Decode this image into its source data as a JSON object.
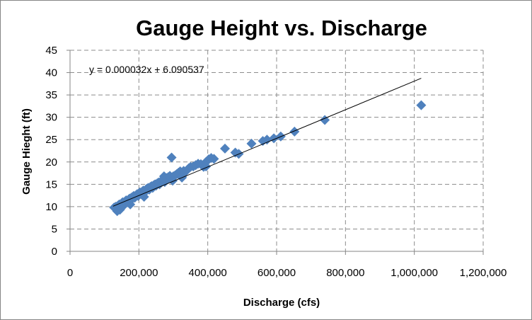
{
  "chart_data": {
    "type": "scatter",
    "title": "Gauge Height vs. Discharge",
    "xlabel": "Discharge (cfs)",
    "ylabel": "Gauge Hieght (ft)",
    "xlim": [
      0,
      1200000
    ],
    "ylim": [
      0,
      45
    ],
    "x_ticks": [
      0,
      200000,
      400000,
      600000,
      800000,
      1000000,
      1200000
    ],
    "x_tick_labels": [
      "0",
      "200,000",
      "400,000",
      "600,000",
      "800,000",
      "1,000,000",
      "1,200,000"
    ],
    "y_ticks": [
      0,
      5,
      10,
      15,
      20,
      25,
      30,
      35,
      40,
      45
    ],
    "y_tick_labels": [
      "0",
      "5",
      "10",
      "15",
      "20",
      "25",
      "30",
      "35",
      "40",
      "45"
    ],
    "grid": "major dashed",
    "legend": "none",
    "marker_color": "#4F81BD",
    "trendline": {
      "equation_label": "y = 0.000032x + 6.090537",
      "slope": 3.2e-05,
      "intercept": 6.090537,
      "x_range": [
        125000,
        1020000
      ]
    },
    "x": [
      128000,
      133000,
      137000,
      140000,
      143000,
      147000,
      150000,
      153000,
      157000,
      160000,
      163000,
      167000,
      170000,
      173000,
      175000,
      178000,
      182000,
      185000,
      188000,
      192000,
      195000,
      198000,
      200000,
      203000,
      207000,
      210000,
      213000,
      217000,
      220000,
      223000,
      227000,
      230000,
      233000,
      237000,
      240000,
      243000,
      247000,
      250000,
      253000,
      257000,
      260000,
      263000,
      267000,
      270000,
      273000,
      277000,
      280000,
      285000,
      290000,
      295000,
      300000,
      305000,
      310000,
      315000,
      320000,
      325000,
      330000,
      335000,
      340000,
      345000,
      350000,
      358000,
      365000,
      372000,
      380000,
      388000,
      395000,
      403000,
      410000,
      418000,
      450000,
      480000,
      490000,
      527000,
      560000,
      572000,
      592000,
      612000,
      652000,
      740000,
      1020000,
      145000,
      155000,
      175000,
      215000,
      275000,
      298000,
      325000,
      395000
    ],
    "y": [
      9.8,
      10.0,
      9.0,
      10.3,
      10.5,
      10.0,
      10.8,
      11.0,
      10.7,
      11.2,
      11.4,
      11.0,
      11.6,
      11.8,
      11.3,
      12.0,
      12.2,
      12.4,
      12.0,
      12.6,
      12.8,
      12.4,
      13.0,
      13.2,
      12.8,
      13.4,
      13.6,
      13.2,
      13.8,
      14.0,
      14.2,
      13.8,
      14.4,
      14.6,
      14.2,
      14.8,
      15.0,
      14.7,
      15.2,
      15.4,
      15.0,
      15.6,
      15.8,
      16.0,
      16.8,
      16.2,
      16.4,
      16.6,
      16.9,
      21.0,
      16.8,
      17.0,
      17.3,
      17.6,
      17.9,
      16.8,
      18.0,
      17.8,
      18.2,
      18.6,
      18.9,
      19.0,
      19.3,
      19.6,
      19.5,
      18.9,
      20.0,
      20.6,
      20.9,
      20.7,
      23.0,
      22.1,
      21.8,
      24.1,
      24.7,
      25.0,
      25.3,
      25.7,
      26.8,
      29.4,
      32.7,
      9.3,
      10.2,
      10.5,
      12.2,
      15.5,
      15.8,
      16.5,
      19.0
    ]
  }
}
